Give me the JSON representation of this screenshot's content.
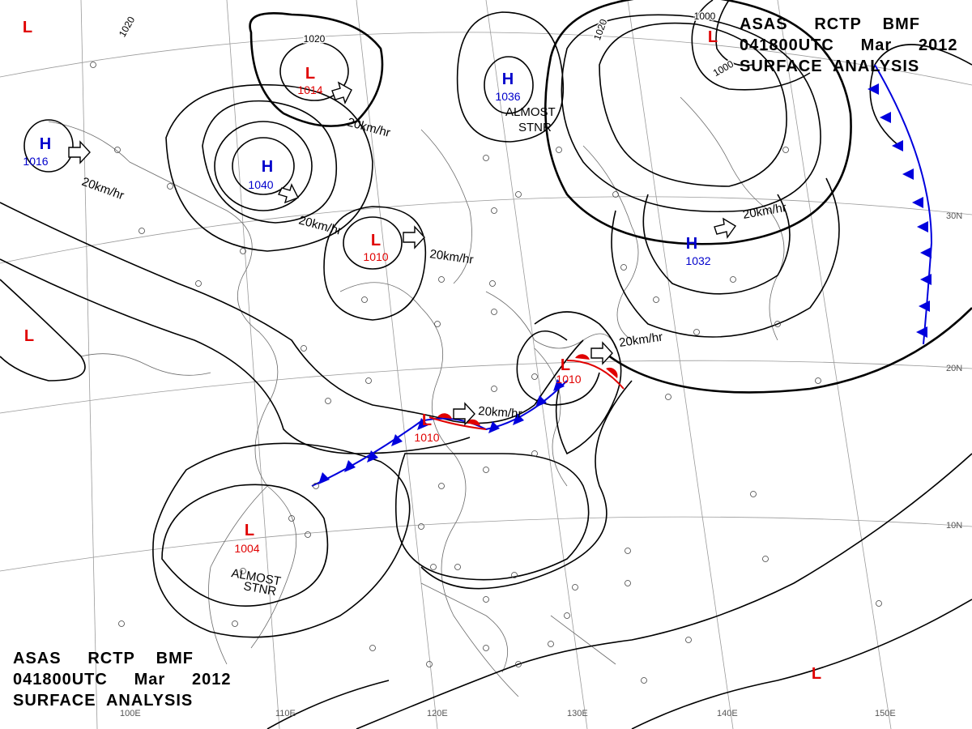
{
  "header": {
    "line1": "ASAS     RCTP    BMF",
    "line2": "041800UTC     Mar     2012",
    "line3": "SURFACE  ANALYSIS"
  },
  "footer": {
    "line1": "ASAS     RCTP    BMF",
    "line2": "041800UTC     Mar     2012",
    "line3": "SURFACE  ANALYSIS"
  },
  "pressure_centers": [
    {
      "type": "L",
      "value": "1014"
    },
    {
      "type": "H",
      "value": "1036"
    },
    {
      "type": "H",
      "value": "1016"
    },
    {
      "type": "H",
      "value": "1040"
    },
    {
      "type": "L",
      "value": "1010"
    },
    {
      "type": "H",
      "value": "1032"
    },
    {
      "type": "L",
      "value": "1010"
    },
    {
      "type": "L",
      "value": "1010"
    },
    {
      "type": "L",
      "value": "1004"
    },
    {
      "type": "L",
      "value": ""
    },
    {
      "type": "L",
      "value": ""
    },
    {
      "type": "L",
      "value": ""
    },
    {
      "type": "L",
      "value": ""
    }
  ],
  "motion_labels": [
    "20km/hr",
    "20km/hr",
    "20km/hr",
    "20km/hr",
    "20km/hr",
    "20km/hr",
    "20km/hr"
  ],
  "status_labels": [
    "ALMOST",
    "STNR",
    "ALMOST",
    "STNR"
  ],
  "isobar_labels": [
    "1020",
    "1020",
    "1020",
    "1000",
    "1000"
  ],
  "lon_labels": [
    "100E",
    "110E",
    "120E",
    "130E",
    "140E",
    "150E"
  ],
  "lat_labels": [
    "30N",
    "20N",
    "10N"
  ],
  "colors": {
    "low": "#e00000",
    "high": "#0000cc",
    "cold_front": "#0000dd",
    "warm_front": "#e00000",
    "isobar": "#000000",
    "grid": "#999999",
    "coast": "#666666"
  }
}
